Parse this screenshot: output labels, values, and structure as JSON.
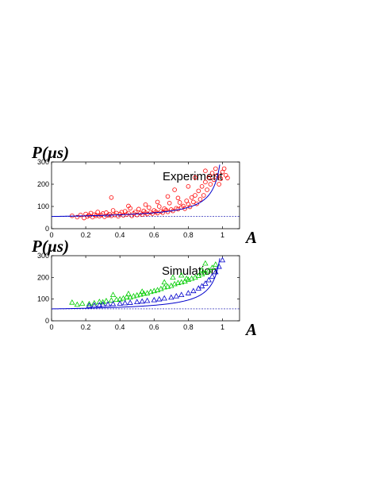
{
  "chart_data": [
    {
      "type": "scatter",
      "ylabel": "P(µs)",
      "xlabel": "A",
      "annotation": "Experiment",
      "xlim": [
        0,
        1.1
      ],
      "ylim": [
        0,
        300
      ],
      "xticks": [
        "0",
        "0.2",
        "0.4",
        "0.6",
        "0.8",
        "1"
      ],
      "yticks": [
        "0",
        "100",
        "200",
        "300"
      ],
      "xtick_values": [
        0,
        0.2,
        0.4,
        0.6,
        0.8,
        1
      ],
      "ytick_values": [
        0,
        100,
        200,
        300
      ],
      "baseline": 55,
      "fit_curve": "blue line rising from ~55 to above 300 near A=1",
      "series": [
        {
          "marker": "circle",
          "color": "#ff0000",
          "points": [
            [
              0.12,
              58
            ],
            [
              0.15,
              52
            ],
            [
              0.17,
              62
            ],
            [
              0.19,
              48
            ],
            [
              0.2,
              66
            ],
            [
              0.21,
              55
            ],
            [
              0.22,
              60
            ],
            [
              0.23,
              70
            ],
            [
              0.24,
              52
            ],
            [
              0.25,
              63
            ],
            [
              0.26,
              58
            ],
            [
              0.27,
              75
            ],
            [
              0.28,
              56
            ],
            [
              0.29,
              62
            ],
            [
              0.3,
              68
            ],
            [
              0.31,
              54
            ],
            [
              0.32,
              72
            ],
            [
              0.33,
              60
            ],
            [
              0.34,
              65
            ],
            [
              0.35,
              58
            ],
            [
              0.36,
              82
            ],
            [
              0.37,
              62
            ],
            [
              0.38,
              70
            ],
            [
              0.39,
              56
            ],
            [
              0.4,
              66
            ],
            [
              0.41,
              74
            ],
            [
              0.42,
              60
            ],
            [
              0.43,
              78
            ],
            [
              0.44,
              64
            ],
            [
              0.45,
              70
            ],
            [
              0.46,
              92
            ],
            [
              0.47,
              58
            ],
            [
              0.48,
              68
            ],
            [
              0.49,
              75
            ],
            [
              0.5,
              62
            ],
            [
              0.51,
              88
            ],
            [
              0.52,
              70
            ],
            [
              0.53,
              64
            ],
            [
              0.54,
              80
            ],
            [
              0.55,
              72
            ],
            [
              0.56,
              66
            ],
            [
              0.57,
              95
            ],
            [
              0.58,
              74
            ],
            [
              0.59,
              68
            ],
            [
              0.6,
              82
            ],
            [
              0.61,
              76
            ],
            [
              0.62,
              70
            ],
            [
              0.63,
              100
            ],
            [
              0.64,
              78
            ],
            [
              0.65,
              72
            ],
            [
              0.66,
              90
            ],
            [
              0.67,
              84
            ],
            [
              0.68,
              76
            ],
            [
              0.69,
              115
            ],
            [
              0.7,
              86
            ],
            [
              0.71,
              80
            ],
            [
              0.72,
              175
            ],
            [
              0.73,
              92
            ],
            [
              0.74,
              88
            ],
            [
              0.75,
              118
            ],
            [
              0.76,
              96
            ],
            [
              0.77,
              102
            ],
            [
              0.78,
              90
            ],
            [
              0.79,
              125
            ],
            [
              0.8,
              110
            ],
            [
              0.81,
              98
            ],
            [
              0.82,
              140
            ],
            [
              0.83,
              120
            ],
            [
              0.84,
              150
            ],
            [
              0.85,
              112
            ],
            [
              0.86,
              170
            ],
            [
              0.87,
              132
            ],
            [
              0.88,
              190
            ],
            [
              0.89,
              150
            ],
            [
              0.9,
              210
            ],
            [
              0.91,
              175
            ],
            [
              0.92,
              230
            ],
            [
              0.93,
              200
            ],
            [
              0.94,
              250
            ],
            [
              0.95,
              220
            ],
            [
              0.96,
              270
            ],
            [
              0.97,
              240
            ],
            [
              0.98,
              200
            ],
            [
              0.99,
              225
            ],
            [
              1.0,
              255
            ],
            [
              1.01,
              270
            ],
            [
              1.02,
              240
            ],
            [
              1.03,
              228
            ],
            [
              0.35,
              140
            ],
            [
              0.45,
              102
            ],
            [
              0.55,
              108
            ],
            [
              0.62,
              120
            ],
            [
              0.68,
              145
            ],
            [
              0.74,
              138
            ],
            [
              0.8,
              190
            ],
            [
              0.84,
              230
            ],
            [
              0.9,
              260
            ]
          ]
        }
      ]
    },
    {
      "type": "scatter",
      "ylabel": "P(µs)",
      "xlabel": "A",
      "annotation": "Simulation",
      "xlim": [
        0,
        1.1
      ],
      "ylim": [
        0,
        300
      ],
      "xticks": [
        "0",
        "0.2",
        "0.4",
        "0.6",
        "0.8",
        "1"
      ],
      "yticks": [
        "0",
        "100",
        "200",
        "300"
      ],
      "xtick_values": [
        0,
        0.2,
        0.4,
        0.6,
        0.8,
        1
      ],
      "ytick_values": [
        0,
        100,
        200,
        300
      ],
      "baseline": 55,
      "fit_curve": "blue line rising from ~55 to above 300 near A=1",
      "series": [
        {
          "marker": "triangle",
          "color": "#00cc00",
          "points": [
            [
              0.12,
              85
            ],
            [
              0.15,
              75
            ],
            [
              0.18,
              80
            ],
            [
              0.22,
              78
            ],
            [
              0.25,
              82
            ],
            [
              0.28,
              88
            ],
            [
              0.3,
              86
            ],
            [
              0.32,
              92
            ],
            [
              0.35,
              95
            ],
            [
              0.36,
              120
            ],
            [
              0.38,
              98
            ],
            [
              0.4,
              100
            ],
            [
              0.42,
              104
            ],
            [
              0.44,
              110
            ],
            [
              0.46,
              108
            ],
            [
              0.48,
              114
            ],
            [
              0.5,
              118
            ],
            [
              0.52,
              122
            ],
            [
              0.54,
              126
            ],
            [
              0.56,
              128
            ],
            [
              0.58,
              134
            ],
            [
              0.6,
              138
            ],
            [
              0.62,
              142
            ],
            [
              0.64,
              148
            ],
            [
              0.66,
              155
            ],
            [
              0.68,
              158
            ],
            [
              0.7,
              162
            ],
            [
              0.72,
              170
            ],
            [
              0.74,
              175
            ],
            [
              0.76,
              178
            ],
            [
              0.78,
              182
            ],
            [
              0.8,
              190
            ],
            [
              0.82,
              195
            ],
            [
              0.84,
              200
            ],
            [
              0.86,
              208
            ],
            [
              0.88,
              215
            ],
            [
              0.9,
              222
            ],
            [
              0.92,
              232
            ],
            [
              0.94,
              245
            ],
            [
              0.96,
              260
            ],
            [
              0.66,
              178
            ],
            [
              0.71,
              200
            ],
            [
              0.76,
              210
            ],
            [
              0.79,
              195
            ],
            [
              0.88,
              235
            ],
            [
              0.9,
              265
            ],
            [
              0.45,
              125
            ],
            [
              0.53,
              135
            ]
          ]
        },
        {
          "marker": "triangle",
          "color": "#0000cc",
          "points": [
            [
              0.22,
              70
            ],
            [
              0.25,
              72
            ],
            [
              0.28,
              73
            ],
            [
              0.3,
              75
            ],
            [
              0.33,
              76
            ],
            [
              0.36,
              78
            ],
            [
              0.4,
              80
            ],
            [
              0.43,
              82
            ],
            [
              0.46,
              84
            ],
            [
              0.5,
              87
            ],
            [
              0.53,
              90
            ],
            [
              0.56,
              93
            ],
            [
              0.6,
              96
            ],
            [
              0.63,
              100
            ],
            [
              0.66,
              104
            ],
            [
              0.7,
              108
            ],
            [
              0.73,
              114
            ],
            [
              0.76,
              120
            ],
            [
              0.8,
              128
            ],
            [
              0.83,
              138
            ],
            [
              0.86,
              150
            ],
            [
              0.88,
              160
            ],
            [
              0.9,
              172
            ],
            [
              0.92,
              188
            ],
            [
              0.94,
              205
            ],
            [
              0.96,
              225
            ],
            [
              0.98,
              250
            ],
            [
              1.0,
              280
            ]
          ]
        }
      ]
    }
  ]
}
